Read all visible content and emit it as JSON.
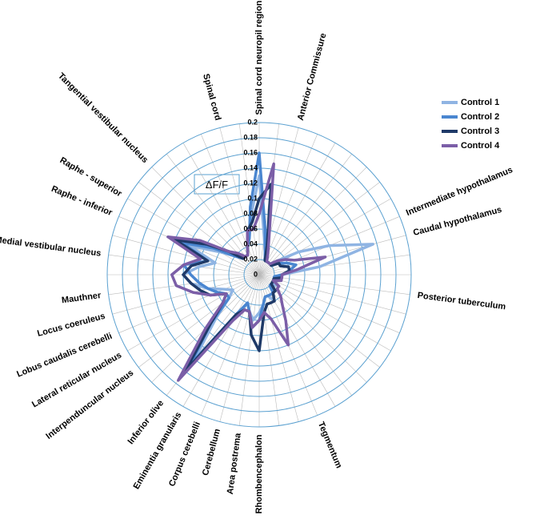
{
  "chart_data": {
    "type": "radar",
    "annotation": "ΔF/F",
    "categories": [
      "Spinal cord neuropil region",
      null,
      "Anterior Commissure",
      null,
      null,
      null,
      null,
      null,
      null,
      "Intermediate hypothalamus",
      "Caudal hypothalamus",
      null,
      null,
      "Posterior tuberculum",
      null,
      null,
      null,
      null,
      null,
      null,
      null,
      "Tegmentum",
      null,
      null,
      "Rhombencephalon",
      "Area postrema",
      "Cerebellum",
      "Corpus cerebelli",
      "Eminentia granularis",
      "Inferior olive",
      null,
      "Interpenduncular nucleus",
      "Lateral reticular nucleus",
      "Lobus caudalis cerebelli",
      "Locus coeruleus",
      "Mauthner",
      null,
      "Medial vestibular nucleus",
      null,
      "Raphe - inferior",
      "Raphe - superior",
      null,
      "Tangential vestibular nucleus",
      null,
      null,
      null,
      "Spinal cord",
      null
    ],
    "series": [
      {
        "name": "Control 1",
        "color": "#8fb4e3",
        "values": [
          0.13,
          0.05,
          0.03,
          0.02,
          0.02,
          0.02,
          0.02,
          0.03,
          0.06,
          0.1,
          0.155,
          0.08,
          0.03,
          0.02,
          0.02,
          0.02,
          0.03,
          0.02,
          0.02,
          0.03,
          0.04,
          0.03,
          0.03,
          0.04,
          0.05,
          0.06,
          0.05,
          0.04,
          0.07,
          0.14,
          0.08,
          0.05,
          0.04,
          0.05,
          0.07,
          0.09,
          0.1,
          0.08,
          0.06,
          0.1,
          0.06,
          0.04,
          0.03,
          0.03,
          0.03,
          0.04,
          0.05,
          0.08
        ]
      },
      {
        "name": "Control 2",
        "color": "#4a86d0",
        "values": [
          0.16,
          0.06,
          0.03,
          0.02,
          0.02,
          0.02,
          0.02,
          0.02,
          0.03,
          0.04,
          0.05,
          0.04,
          0.03,
          0.02,
          0.02,
          0.02,
          0.02,
          0.02,
          0.02,
          0.03,
          0.03,
          0.03,
          0.03,
          0.04,
          0.06,
          0.07,
          0.05,
          0.04,
          0.06,
          0.15,
          0.09,
          0.05,
          0.05,
          0.06,
          0.07,
          0.08,
          0.09,
          0.1,
          0.07,
          0.11,
          0.07,
          0.04,
          0.03,
          0.03,
          0.03,
          0.04,
          0.05,
          0.09
        ]
      },
      {
        "name": "Control 3",
        "color": "#1f3a68",
        "values": [
          0.1,
          0.12,
          0.04,
          0.02,
          0.02,
          0.02,
          0.02,
          0.02,
          0.03,
          0.03,
          0.04,
          0.04,
          0.03,
          0.03,
          0.02,
          0.02,
          0.02,
          0.02,
          0.03,
          0.03,
          0.04,
          0.04,
          0.04,
          0.05,
          0.1,
          0.08,
          0.05,
          0.05,
          0.06,
          0.16,
          0.09,
          0.06,
          0.05,
          0.07,
          0.08,
          0.09,
          0.1,
          0.09,
          0.07,
          0.12,
          0.08,
          0.05,
          0.03,
          0.03,
          0.03,
          0.04,
          0.06,
          0.07
        ]
      },
      {
        "name": "Control 4",
        "color": "#7b5ea7",
        "values": [
          0.08,
          0.147,
          0.05,
          0.03,
          0.02,
          0.02,
          0.02,
          0.03,
          0.04,
          0.05,
          0.09,
          0.05,
          0.03,
          0.03,
          0.03,
          0.02,
          0.03,
          0.03,
          0.04,
          0.05,
          0.07,
          0.1,
          0.06,
          0.05,
          0.06,
          0.07,
          0.05,
          0.05,
          0.07,
          0.175,
          0.1,
          0.06,
          0.05,
          0.07,
          0.09,
          0.11,
          0.115,
          0.1,
          0.08,
          0.13,
          0.09,
          0.05,
          0.04,
          0.03,
          0.03,
          0.04,
          0.06,
          0.06
        ]
      }
    ],
    "ylim": [
      0,
      0.2
    ],
    "yticks": [
      0,
      0.02,
      0.04,
      0.06,
      0.08,
      0.1,
      0.12,
      0.14,
      0.16,
      0.18,
      0.2
    ],
    "grid": true,
    "legend": "top-right"
  }
}
